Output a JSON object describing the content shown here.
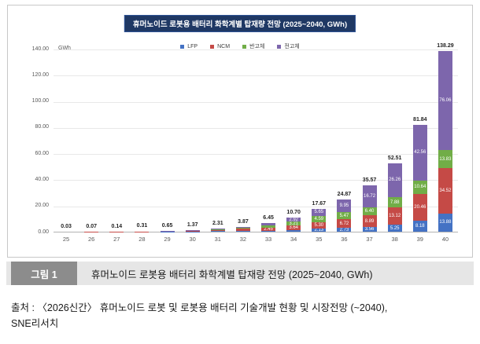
{
  "chart": {
    "title": "휴머노이드 로봇용 배터리 화학계별 탑재량 전망 (2025~2040, GWh)",
    "unit_label": "GWh"
  },
  "chart_data": {
    "type": "bar",
    "stacked": true,
    "title": "휴머노이드 로봇용 배터리 화학계별 탑재량 전망 (2025~2040, GWh)",
    "categories": [
      "25",
      "26",
      "27",
      "28",
      "29",
      "30",
      "31",
      "32",
      "33",
      "34",
      "35",
      "36",
      "37",
      "38",
      "39",
      "40"
    ],
    "series": [
      {
        "name": "LFP",
        "color": "#4472C4",
        "values": [
          0.01,
          0.02,
          0.04,
          0.07,
          0.13,
          0.24,
          0.38,
          0.55,
          0.75,
          0.93,
          2.13,
          2.73,
          3.56,
          5.25,
          8.18,
          13.88
        ]
      },
      {
        "name": "NCM",
        "color": "#C54A46",
        "values": [
          0.02,
          0.05,
          0.09,
          0.18,
          0.35,
          0.7,
          1.1,
          1.7,
          2.45,
          3.64,
          5.3,
          6.72,
          8.89,
          13.12,
          20.46,
          34.52
        ]
      },
      {
        "name": "반고체",
        "color": "#71AD47",
        "values": [
          0.0,
          0.0,
          0.01,
          0.04,
          0.12,
          0.28,
          0.53,
          0.92,
          1.8,
          3.21,
          4.59,
          5.47,
          6.4,
          7.88,
          10.64,
          13.83
        ]
      },
      {
        "name": "전고체",
        "color": "#7D66AC",
        "values": [
          0.0,
          0.0,
          0.0,
          0.02,
          0.05,
          0.15,
          0.3,
          0.7,
          1.45,
          2.92,
          5.65,
          9.95,
          16.72,
          26.26,
          42.56,
          76.06
        ]
      }
    ],
    "totals": [
      0.03,
      0.07,
      0.14,
      0.31,
      0.65,
      1.37,
      2.31,
      3.87,
      6.45,
      10.7,
      17.67,
      24.87,
      35.57,
      52.51,
      81.84,
      138.29
    ],
    "xlabel": "",
    "ylabel": "GWh",
    "ylim": [
      0,
      140
    ],
    "ytick_step": 20,
    "grid": true,
    "legend_position": "top"
  },
  "caption": {
    "label": "그림 1",
    "title": "휴머노이드 로봇용 배터리 화학계별 탑재량 전망 (2025~2040, GWh)"
  },
  "source": {
    "line1": "출처 : 〈2026신간〉 휴머노이드 로봇 및 로봇용 배터리 기술개발 현황 및 시장전망 (~2040),",
    "line2": "SNE리서치"
  }
}
